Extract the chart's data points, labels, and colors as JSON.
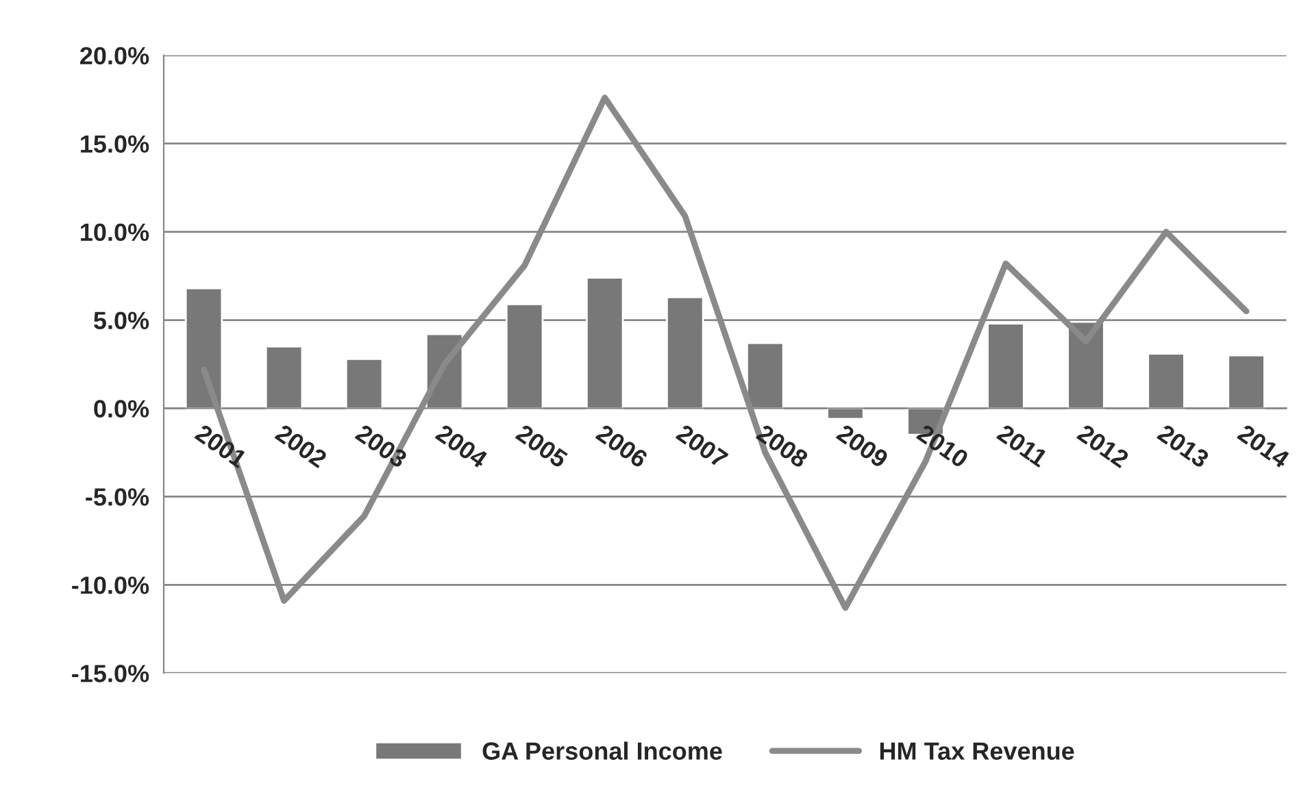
{
  "chart_data": {
    "type": "bar",
    "categories": [
      "2001",
      "2002",
      "2003",
      "2004",
      "2005",
      "2006",
      "2007",
      "2008",
      "2009",
      "2010",
      "2011",
      "2012",
      "2013",
      "2014"
    ],
    "series": [
      {
        "name": "GA Personal Income",
        "color": "#787878",
        "values": [
          6.8,
          3.5,
          2.8,
          4.2,
          5.9,
          7.4,
          6.3,
          3.7,
          -0.6,
          -1.5,
          4.8,
          4.9,
          3.1,
          3.0
        ]
      },
      {
        "name": "HM Tax Revenue",
        "type": "line",
        "color": "#8a8a8a",
        "values": [
          2.2,
          -10.9,
          -6.1,
          2.5,
          8.1,
          17.6,
          10.9,
          -2.5,
          -11.3,
          -3.0,
          8.2,
          3.8,
          10.0,
          5.5
        ]
      }
    ],
    "ylim": [
      -15,
      20
    ],
    "yticks": [
      {
        "value": -15,
        "label": "-15.0%"
      },
      {
        "value": -10,
        "label": "-10.0%"
      },
      {
        "value": -5,
        "label": "-5.0%"
      },
      {
        "value": 0,
        "label": "0.0%"
      },
      {
        "value": 5,
        "label": "5.0%"
      },
      {
        "value": 10,
        "label": "10.0%"
      },
      {
        "value": 15,
        "label": "15.0%"
      },
      {
        "value": 20,
        "label": "20.0%"
      }
    ],
    "grid": "y",
    "legend": "bottom",
    "marker": "none",
    "line_style": "solid"
  }
}
